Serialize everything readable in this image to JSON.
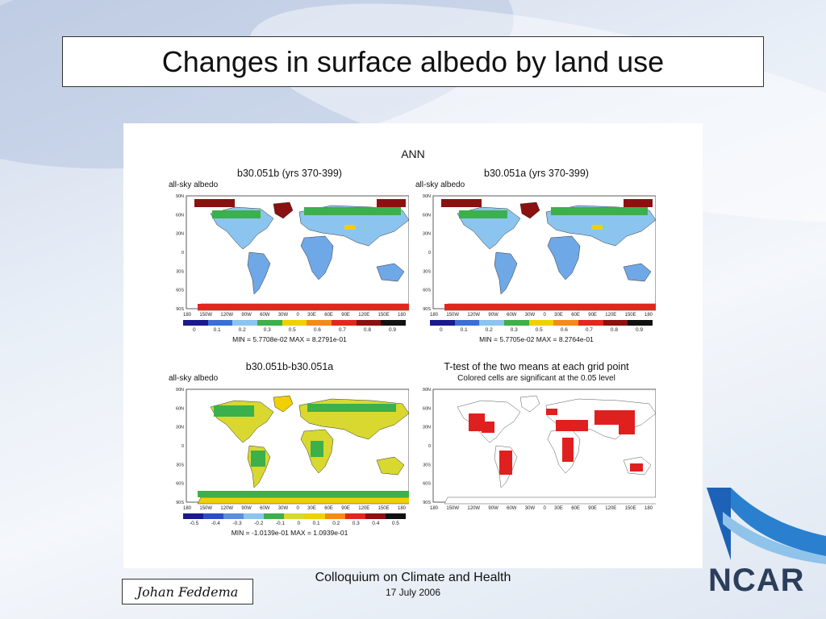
{
  "slide": {
    "title": "Changes in surface albedo by land use",
    "author": "Johan Feddema",
    "event": "Colloquium on Climate and Health",
    "date": "17 July 2006",
    "logo_text": "NCAR"
  },
  "figure": {
    "title": "ANN",
    "latitude_labels": [
      "90N",
      "60N",
      "30N",
      "0",
      "30S",
      "60S",
      "90S"
    ],
    "longitude_labels": [
      "180",
      "150W",
      "120W",
      "90W",
      "60W",
      "30W",
      "0",
      "30E",
      "60E",
      "90E",
      "120E",
      "150E",
      "180"
    ],
    "panels": [
      {
        "title": "b30.051b (yrs 370-399)",
        "subtitle": "all-sky albedo",
        "colorbar_labels": [
          "0",
          "0.1",
          "0.2",
          "0.3",
          "0.5",
          "0.6",
          "0.7",
          "0.8",
          "0.9"
        ],
        "colorbar_colors": [
          "#1a1a8c",
          "#3a6fd6",
          "#8cc4f0",
          "#3cb04a",
          "#f0d000",
          "#f58a1a",
          "#e0281e",
          "#8b1010",
          "#111111"
        ],
        "stats": "MIN = 5.7708e-02 MAX = 8.2791e-01"
      },
      {
        "title": "b30.051a (yrs 370-399)",
        "subtitle": "all-sky albedo",
        "colorbar_labels": [
          "0",
          "0.1",
          "0.2",
          "0.3",
          "0.5",
          "0.6",
          "0.7",
          "0.8",
          "0.9"
        ],
        "colorbar_colors": [
          "#1a1a8c",
          "#3a6fd6",
          "#8cc4f0",
          "#3cb04a",
          "#f0d000",
          "#f58a1a",
          "#e0281e",
          "#8b1010",
          "#111111"
        ],
        "stats": "MIN = 5.7705e-02 MAX = 8.2764e-01"
      },
      {
        "title": "b30.051b-b30.051a",
        "subtitle": "all-sky albedo",
        "colorbar_labels": [
          "-0.5",
          "-0.4",
          "-0.3",
          "-0.2",
          "-0.1",
          "0",
          "0.1",
          "0.2",
          "0.3",
          "0.4",
          "0.5"
        ],
        "colorbar_colors": [
          "#1a1a8c",
          "#2a4fc0",
          "#5a8fe0",
          "#8cc4f0",
          "#3cb04a",
          "#d8d830",
          "#f0d000",
          "#f58a1a",
          "#e0281e",
          "#8b1010",
          "#111111"
        ],
        "stats": "MIN = -1.0139e-01 MAX = 1.0939e-01"
      },
      {
        "title": "T-test of the two means at each grid point",
        "subtitle": "Colored cells are significant at the 0.05 level"
      }
    ]
  }
}
